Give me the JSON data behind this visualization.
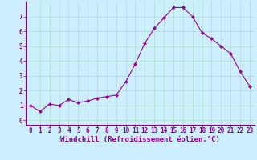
{
  "x": [
    0,
    1,
    2,
    3,
    4,
    5,
    6,
    7,
    8,
    9,
    10,
    11,
    12,
    13,
    14,
    15,
    16,
    17,
    18,
    19,
    20,
    21,
    22,
    23
  ],
  "y": [
    1.0,
    0.6,
    1.1,
    1.0,
    1.4,
    1.2,
    1.3,
    1.5,
    1.6,
    1.7,
    2.6,
    3.8,
    5.2,
    6.2,
    6.9,
    7.6,
    7.6,
    7.0,
    5.9,
    5.5,
    5.0,
    4.5,
    3.3,
    2.3
  ],
  "line_color": "#990099",
  "marker": "D",
  "marker_size": 2.0,
  "bg_color": "#cceeff",
  "grid_color": "#aaddcc",
  "xlabel": "Windchill (Refroidissement éolien,°C)",
  "ylabel": "",
  "title": "",
  "xlim": [
    -0.5,
    23.5
  ],
  "ylim": [
    -0.3,
    8.0
  ],
  "yticks": [
    0,
    1,
    2,
    3,
    4,
    5,
    6,
    7
  ],
  "xticks": [
    0,
    1,
    2,
    3,
    4,
    5,
    6,
    7,
    8,
    9,
    10,
    11,
    12,
    13,
    14,
    15,
    16,
    17,
    18,
    19,
    20,
    21,
    22,
    23
  ],
  "tick_label_fontsize": 5.5,
  "xlabel_fontsize": 6.5,
  "axis_color": "#880088",
  "spine_color": "#880088",
  "linewidth": 0.8,
  "grid_linewidth": 0.5
}
